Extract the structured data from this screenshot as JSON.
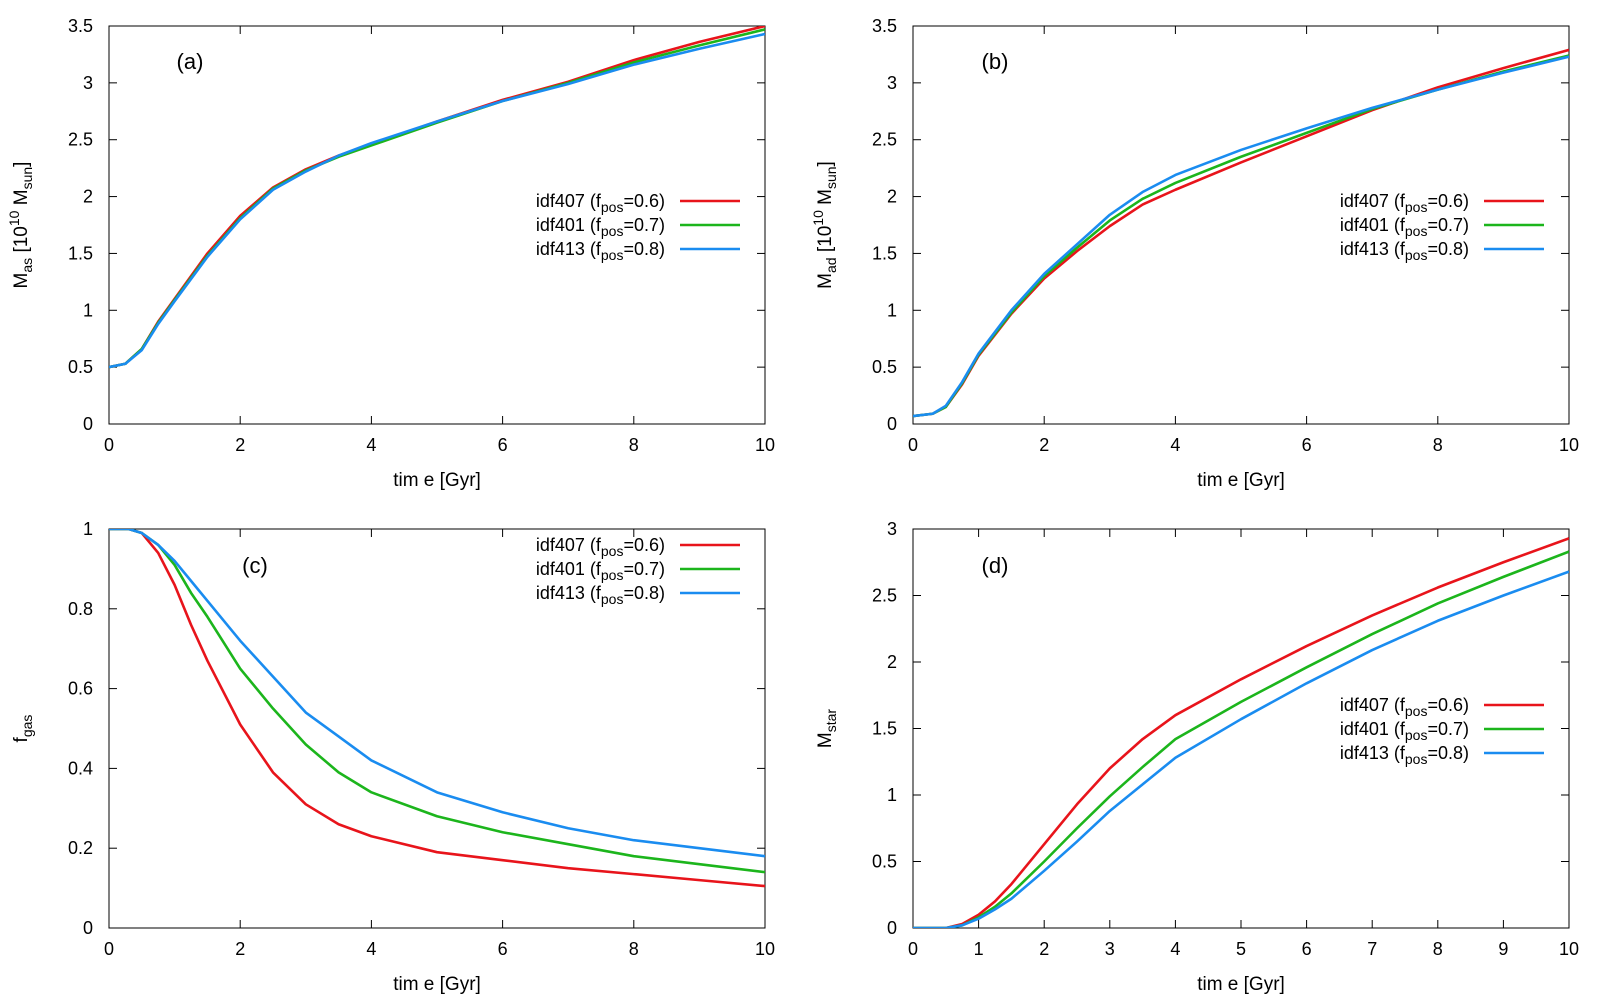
{
  "figure": {
    "legend": [
      {
        "name": "idf407",
        "sub": "pos",
        "value": "0.6",
        "color": "#e8141b"
      },
      {
        "name": "idf401",
        "sub": "pos",
        "value": "0.7",
        "color": "#1cb51c"
      },
      {
        "name": "idf413",
        "sub": "pos",
        "value": "0.8",
        "color": "#1a8cf0"
      }
    ]
  },
  "chart_data": [
    {
      "id": "a",
      "type": "line",
      "panel_label": "(a)",
      "xlabel": "tim e [Gyr]",
      "ylabel": {
        "base": "M",
        "sub": "as",
        "unit_pre": "[10",
        "unit_sup": "10",
        "unit_base": "M",
        "unit_sub": "sun",
        "unit_post": "]"
      },
      "xlim": [
        0,
        10
      ],
      "ylim": [
        0,
        3.5
      ],
      "xticks": [
        "0",
        "2",
        "4",
        "6",
        "8",
        "10"
      ],
      "yticks": [
        "0",
        "0.5",
        "1",
        "1.5",
        "2",
        "2.5",
        "3",
        "3.5"
      ],
      "legend_position": "right-middle",
      "x": [
        0,
        0.25,
        0.5,
        0.75,
        1,
        1.5,
        2,
        2.5,
        3,
        3.5,
        4,
        5,
        6,
        7,
        8,
        9,
        10
      ],
      "series": [
        {
          "name": "idf407",
          "color": "#e8141b",
          "values": [
            0.5,
            0.53,
            0.66,
            0.9,
            1.1,
            1.5,
            1.83,
            2.08,
            2.24,
            2.36,
            2.46,
            2.66,
            2.85,
            3.01,
            3.2,
            3.36,
            3.5
          ]
        },
        {
          "name": "idf401",
          "color": "#1cb51c",
          "values": [
            0.5,
            0.53,
            0.66,
            0.89,
            1.09,
            1.48,
            1.81,
            2.07,
            2.23,
            2.35,
            2.45,
            2.65,
            2.84,
            3.0,
            3.18,
            3.33,
            3.47
          ]
        },
        {
          "name": "idf413",
          "color": "#1a8cf0",
          "values": [
            0.5,
            0.53,
            0.65,
            0.88,
            1.08,
            1.47,
            1.8,
            2.06,
            2.22,
            2.36,
            2.47,
            2.66,
            2.84,
            2.99,
            3.16,
            3.3,
            3.43
          ]
        }
      ]
    },
    {
      "id": "b",
      "type": "line",
      "panel_label": "(b)",
      "xlabel": "tim e [Gyr]",
      "ylabel": {
        "base": "M",
        "sub": "ad",
        "unit_pre": "[10",
        "unit_sup": "10",
        "unit_base": "M",
        "unit_sub": "sun",
        "unit_post": "]"
      },
      "xlim": [
        0,
        10
      ],
      "ylim": [
        0,
        3.5
      ],
      "xticks": [
        "0",
        "2",
        "4",
        "6",
        "8",
        "10"
      ],
      "yticks": [
        "0",
        "0.5",
        "1",
        "1.5",
        "2",
        "2.5",
        "3",
        "3.5"
      ],
      "legend_position": "right-middle",
      "x": [
        0,
        0.3,
        0.5,
        0.75,
        1,
        1.5,
        2,
        2.5,
        3,
        3.5,
        4,
        5,
        6,
        7,
        8,
        9,
        10
      ],
      "series": [
        {
          "name": "idf407",
          "color": "#e8141b",
          "values": [
            0.07,
            0.09,
            0.15,
            0.35,
            0.6,
            0.97,
            1.28,
            1.52,
            1.74,
            1.93,
            2.06,
            2.3,
            2.53,
            2.76,
            2.96,
            3.13,
            3.29
          ]
        },
        {
          "name": "idf401",
          "color": "#1cb51c",
          "values": [
            0.07,
            0.09,
            0.15,
            0.36,
            0.61,
            0.98,
            1.3,
            1.55,
            1.79,
            1.98,
            2.12,
            2.35,
            2.56,
            2.77,
            2.94,
            3.1,
            3.24
          ]
        },
        {
          "name": "idf413",
          "color": "#1a8cf0",
          "values": [
            0.07,
            0.09,
            0.16,
            0.37,
            0.62,
            1.0,
            1.32,
            1.58,
            1.84,
            2.04,
            2.19,
            2.41,
            2.6,
            2.78,
            2.94,
            3.09,
            3.23
          ]
        }
      ]
    },
    {
      "id": "c",
      "type": "line",
      "panel_label": "(c)",
      "xlabel": "tim e [Gyr]",
      "ylabel": {
        "base": "f",
        "sub": "gas"
      },
      "xlim": [
        0,
        10
      ],
      "ylim": [
        0,
        1
      ],
      "xticks": [
        "0",
        "2",
        "4",
        "6",
        "8",
        "10"
      ],
      "yticks": [
        "0",
        "0.2",
        "0.4",
        "0.6",
        "0.8",
        "1"
      ],
      "legend_position": "top-right",
      "x": [
        0,
        0.3,
        0.5,
        0.75,
        1,
        1.25,
        1.5,
        2,
        2.5,
        3,
        3.5,
        4,
        5,
        6,
        7,
        8,
        9,
        10
      ],
      "series": [
        {
          "name": "idf407",
          "color": "#e8141b",
          "values": [
            1.0,
            1.0,
            0.99,
            0.94,
            0.86,
            0.76,
            0.67,
            0.51,
            0.39,
            0.31,
            0.26,
            0.23,
            0.19,
            0.17,
            0.15,
            0.135,
            0.12,
            0.105
          ]
        },
        {
          "name": "idf401",
          "color": "#1cb51c",
          "values": [
            1.0,
            1.0,
            0.99,
            0.96,
            0.91,
            0.84,
            0.78,
            0.65,
            0.55,
            0.46,
            0.39,
            0.34,
            0.28,
            0.24,
            0.21,
            0.18,
            0.16,
            0.14
          ]
        },
        {
          "name": "idf413",
          "color": "#1a8cf0",
          "values": [
            1.0,
            1.0,
            0.99,
            0.96,
            0.92,
            0.87,
            0.82,
            0.72,
            0.63,
            0.54,
            0.48,
            0.42,
            0.34,
            0.29,
            0.25,
            0.22,
            0.2,
            0.18
          ]
        }
      ]
    },
    {
      "id": "d",
      "type": "line",
      "panel_label": "(d)",
      "xlabel": "tim e [Gyr]",
      "ylabel": {
        "base": "M",
        "sub": "star"
      },
      "xlim": [
        0,
        10
      ],
      "ylim": [
        0,
        3
      ],
      "xticks": [
        "0",
        "1",
        "2",
        "3",
        "4",
        "5",
        "6",
        "7",
        "8",
        "9",
        "10"
      ],
      "yticks": [
        "0",
        "0.5",
        "1",
        "1.5",
        "2",
        "2.5",
        "3"
      ],
      "legend_position": "right-middle",
      "x": [
        0,
        0.5,
        0.75,
        1,
        1.25,
        1.5,
        2,
        2.5,
        3,
        3.5,
        4,
        5,
        6,
        7,
        8,
        9,
        10
      ],
      "series": [
        {
          "name": "idf407",
          "color": "#e8141b",
          "values": [
            0,
            0.0,
            0.03,
            0.1,
            0.2,
            0.33,
            0.63,
            0.93,
            1.2,
            1.42,
            1.6,
            1.87,
            2.12,
            2.35,
            2.56,
            2.75,
            2.93
          ]
        },
        {
          "name": "idf401",
          "color": "#1cb51c",
          "values": [
            0,
            0.0,
            0.02,
            0.08,
            0.16,
            0.26,
            0.5,
            0.75,
            0.99,
            1.21,
            1.42,
            1.7,
            1.96,
            2.21,
            2.44,
            2.64,
            2.83
          ]
        },
        {
          "name": "idf413",
          "color": "#1a8cf0",
          "values": [
            0,
            0.0,
            0.02,
            0.07,
            0.14,
            0.22,
            0.43,
            0.65,
            0.88,
            1.08,
            1.28,
            1.57,
            1.84,
            2.09,
            2.31,
            2.5,
            2.68
          ]
        }
      ]
    }
  ]
}
